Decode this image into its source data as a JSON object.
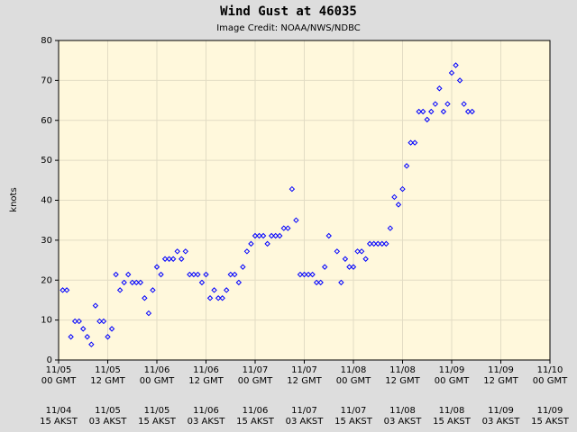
{
  "chart_data": {
    "type": "scatter",
    "title": "Wind Gust at 46035",
    "subtitle": "Image Credit: NOAA/NWS/NDBC",
    "ylabel": "knots",
    "color": "#0000ff",
    "grid": true,
    "ylim": [
      0,
      80
    ],
    "yticks": [
      0,
      10,
      20,
      30,
      40,
      50,
      60,
      70,
      80
    ],
    "xlim": [
      "11/05 00",
      "11/10 00"
    ],
    "xticks": [
      {
        "value": "11/05 00",
        "label": "11/05 00 GMT"
      },
      {
        "value": "11/05 12",
        "label": "11/05 12 GMT"
      },
      {
        "value": "11/06 00",
        "label": "11/06 00 GMT"
      },
      {
        "value": "11/06 12",
        "label": "11/06 12 GMT"
      },
      {
        "value": "11/07 00",
        "label": "11/07 00 GMT"
      },
      {
        "value": "11/07 12",
        "label": "11/07 12 GMT"
      },
      {
        "value": "11/08 00",
        "label": "11/08 00 GMT"
      },
      {
        "value": "11/08 12",
        "label": "11/08 12 GMT"
      },
      {
        "value": "11/09 00",
        "label": "11/09 00 GMT"
      },
      {
        "value": "11/09 12",
        "label": "11/09 12 GMT"
      },
      {
        "value": "11/10 00",
        "label": "11/10 00 GMT"
      }
    ],
    "x2ticks": [
      {
        "value": "11/05 00",
        "label": "11/04 15 AKST"
      },
      {
        "value": "11/05 12",
        "label": "11/05 03 AKST"
      },
      {
        "value": "11/06 00",
        "label": "11/05 15 AKST"
      },
      {
        "value": "11/06 12",
        "label": "11/06 03 AKST"
      },
      {
        "value": "11/07 00",
        "label": "11/06 15 AKST"
      },
      {
        "value": "11/07 12",
        "label": "11/07 03 AKST"
      },
      {
        "value": "11/08 00",
        "label": "11/07 15 AKST"
      },
      {
        "value": "11/08 12",
        "label": "11/08 03 AKST"
      },
      {
        "value": "11/09 00",
        "label": "11/08 15 AKST"
      },
      {
        "value": "11/09 12",
        "label": "11/09 03 AKST"
      },
      {
        "value": "11/10 00",
        "label": "11/09 15 AKST"
      }
    ],
    "x": [
      "11/05 01",
      "11/05 02",
      "11/05 03",
      "11/05 04",
      "11/05 05",
      "11/05 06",
      "11/05 07",
      "11/05 08",
      "11/05 09",
      "11/05 10",
      "11/05 11",
      "11/05 12",
      "11/05 13",
      "11/05 14",
      "11/05 15",
      "11/05 16",
      "11/05 17",
      "11/05 18",
      "11/05 19",
      "11/05 20",
      "11/05 21",
      "11/05 22",
      "11/05 23",
      "11/06 00",
      "11/06 01",
      "11/06 02",
      "11/06 03",
      "11/06 04",
      "11/06 05",
      "11/06 06",
      "11/06 07",
      "11/06 08",
      "11/06 09",
      "11/06 10",
      "11/06 11",
      "11/06 12",
      "11/06 13",
      "11/06 14",
      "11/06 15",
      "11/06 16",
      "11/06 17",
      "11/06 18",
      "11/06 19",
      "11/06 20",
      "11/06 21",
      "11/06 22",
      "11/06 23",
      "11/07 00",
      "11/07 01",
      "11/07 02",
      "11/07 03",
      "11/07 04",
      "11/07 05",
      "11/07 06",
      "11/07 07",
      "11/07 08",
      "11/07 09",
      "11/07 10",
      "11/07 11",
      "11/07 12",
      "11/07 13",
      "11/07 14",
      "11/07 15",
      "11/07 16",
      "11/07 17",
      "11/07 18",
      "11/07 20",
      "11/07 21",
      "11/07 22",
      "11/07 23",
      "11/08 00",
      "11/08 01",
      "11/08 02",
      "11/08 03",
      "11/08 04",
      "11/08 05",
      "11/08 06",
      "11/08 07",
      "11/08 08",
      "11/08 09",
      "11/08 10",
      "11/08 11",
      "11/08 12",
      "11/08 13",
      "11/08 14",
      "11/08 15",
      "11/08 16",
      "11/08 17",
      "11/08 18",
      "11/08 19",
      "11/08 20",
      "11/08 21",
      "11/08 22",
      "11/08 23",
      "11/09 00",
      "11/09 01",
      "11/09 02",
      "11/09 03",
      "11/09 04",
      "11/09 05"
    ],
    "values": [
      17.5,
      17.5,
      5.8,
      9.7,
      9.7,
      7.8,
      5.8,
      3.9,
      13.6,
      9.7,
      9.7,
      5.8,
      7.8,
      21.4,
      17.5,
      19.4,
      21.4,
      19.4,
      19.4,
      19.4,
      15.5,
      11.7,
      17.5,
      23.3,
      21.4,
      25.3,
      25.3,
      25.3,
      27.2,
      25.3,
      27.2,
      21.4,
      21.4,
      21.4,
      19.4,
      21.4,
      15.5,
      17.5,
      15.5,
      15.5,
      17.5,
      21.4,
      21.4,
      19.4,
      23.3,
      27.2,
      29.1,
      31.1,
      31.1,
      31.1,
      29.1,
      31.1,
      31.1,
      31.1,
      33.0,
      33.0,
      42.8,
      35.0,
      21.4,
      21.4,
      21.4,
      21.4,
      19.4,
      19.4,
      23.3,
      31.1,
      27.2,
      19.4,
      25.3,
      23.3,
      23.3,
      27.2,
      27.2,
      25.3,
      29.1,
      29.1,
      29.1,
      29.1,
      29.1,
      33.0,
      40.8,
      38.9,
      42.8,
      48.6,
      54.4,
      54.4,
      62.2,
      62.2,
      60.2,
      62.2,
      64.1,
      68.0,
      62.2,
      64.1,
      71.9,
      73.8,
      70.0,
      64.1,
      62.2,
      62.2
    ]
  }
}
